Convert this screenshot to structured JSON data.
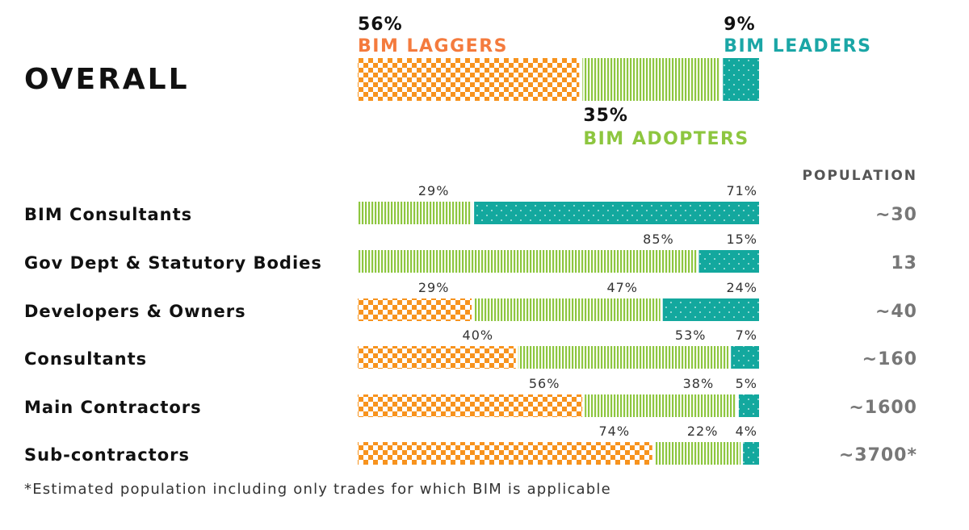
{
  "colors": {
    "laggers": "#f7931e",
    "adopters": "#8dc63f",
    "leaders": "#13a89e",
    "laggers_text": "#f47b3e",
    "adopters_text": "#8dc63f",
    "leaders_text": "#1ba6a6"
  },
  "chart_data": {
    "type": "bar",
    "orientation": "horizontal",
    "stacked": true,
    "normalized": true,
    "title": "OVERALL",
    "overall": {
      "series": [
        {
          "name": "BIM LAGGERS",
          "value": 56,
          "label": "56%"
        },
        {
          "name": "BIM ADOPTERS",
          "value": 35,
          "label": "35%"
        },
        {
          "name": "BIM LEADERS",
          "value": 9,
          "label": "9%"
        }
      ]
    },
    "population_header": "POPULATION",
    "rows": [
      {
        "label": "BIM Consultants",
        "population": "~30",
        "segments": [
          {
            "series": "adopters",
            "value": 29,
            "label": "29%"
          },
          {
            "series": "leaders",
            "value": 71,
            "label": "71%"
          }
        ]
      },
      {
        "label": "Gov Dept & Statutory Bodies",
        "population": "13",
        "segments": [
          {
            "series": "adopters",
            "value": 85,
            "label": "85%"
          },
          {
            "series": "leaders",
            "value": 15,
            "label": "15%"
          }
        ]
      },
      {
        "label": "Developers & Owners",
        "population": "~40",
        "segments": [
          {
            "series": "laggers",
            "value": 29,
            "label": "29%"
          },
          {
            "series": "adopters",
            "value": 47,
            "label": "47%"
          },
          {
            "series": "leaders",
            "value": 24,
            "label": "24%"
          }
        ]
      },
      {
        "label": "Consultants",
        "population": "~160",
        "segments": [
          {
            "series": "laggers",
            "value": 40,
            "label": "40%"
          },
          {
            "series": "adopters",
            "value": 53,
            "label": "53%"
          },
          {
            "series": "leaders",
            "value": 7,
            "label": "7%"
          }
        ]
      },
      {
        "label": "Main Contractors",
        "population": "~1600",
        "segments": [
          {
            "series": "laggers",
            "value": 56,
            "label": "56%"
          },
          {
            "series": "adopters",
            "value": 38,
            "label": "38%"
          },
          {
            "series": "leaders",
            "value": 5,
            "label": "5%"
          }
        ]
      },
      {
        "label": "Sub-contractors",
        "population": "~3700*",
        "segments": [
          {
            "series": "laggers",
            "value": 74,
            "label": "74%"
          },
          {
            "series": "adopters",
            "value": 22,
            "label": "22%"
          },
          {
            "series": "leaders",
            "value": 4,
            "label": "4%"
          }
        ]
      }
    ],
    "footnote": "*Estimated population including only trades for which BIM is applicable"
  }
}
